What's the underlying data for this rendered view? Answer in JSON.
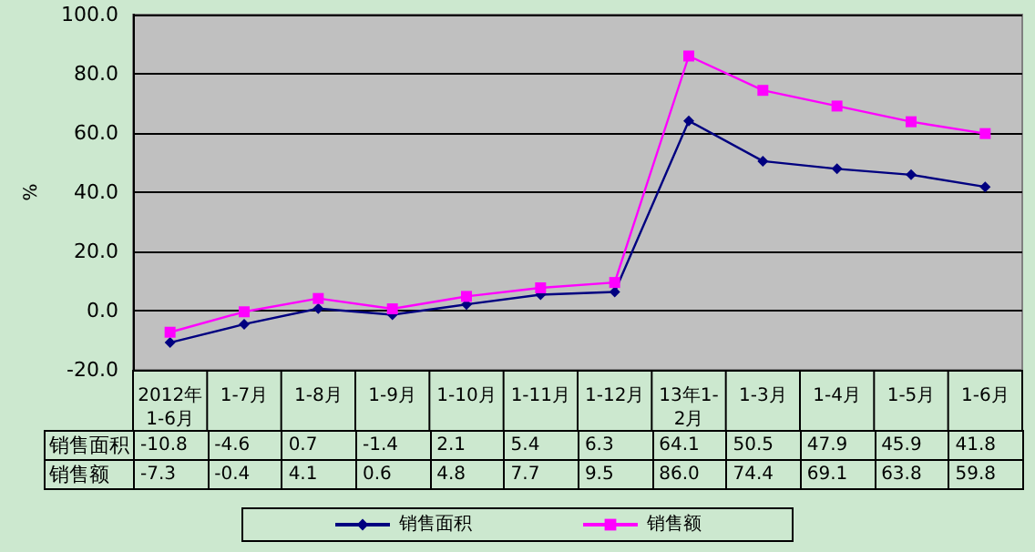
{
  "chart_data": {
    "type": "line",
    "ylabel": "%",
    "categories": [
      "2012年\n1-6月",
      "1-7月",
      "1-8月",
      "1-9月",
      "1-10月",
      "1-11月",
      "1-12月",
      "13年1-\n2月",
      "1-3月",
      "1-4月",
      "1-5月",
      "1-6月"
    ],
    "series": [
      {
        "name": "销售面积",
        "color": "#000080",
        "marker": "diamond",
        "values": [
          -10.8,
          -4.6,
          0.7,
          -1.4,
          2.1,
          5.4,
          6.3,
          64.1,
          50.5,
          47.9,
          45.9,
          41.8
        ],
        "value_labels": [
          "-10.8",
          "-4.6",
          "0.7",
          "-1.4",
          "2.1",
          "5.4",
          "6.3",
          "64.1",
          "50.5",
          "47.9",
          "45.9",
          "41.8"
        ]
      },
      {
        "name": "销售额",
        "color": "#ff00ff",
        "marker": "square",
        "values": [
          -7.3,
          -0.4,
          4.1,
          0.6,
          4.8,
          7.7,
          9.5,
          86.0,
          74.4,
          69.1,
          63.8,
          59.8
        ],
        "value_labels": [
          "-7.3",
          "-0.4",
          "4.1",
          "0.6",
          "4.8",
          "7.7",
          "9.5",
          "86.0",
          "74.4",
          "69.1",
          "63.8",
          "59.8"
        ]
      }
    ],
    "ylim": [
      -20,
      100
    ],
    "yticks": [
      {
        "value": -20,
        "label": "-20.0"
      },
      {
        "value": 0,
        "label": "0.0"
      },
      {
        "value": 20,
        "label": "20.0"
      },
      {
        "value": 40,
        "label": "40.0"
      },
      {
        "value": 60,
        "label": "60.0"
      },
      {
        "value": 80,
        "label": "80.0"
      },
      {
        "value": 100,
        "label": "100.0"
      }
    ],
    "grid": "y",
    "legend": "bottom",
    "line_style": "solid"
  }
}
